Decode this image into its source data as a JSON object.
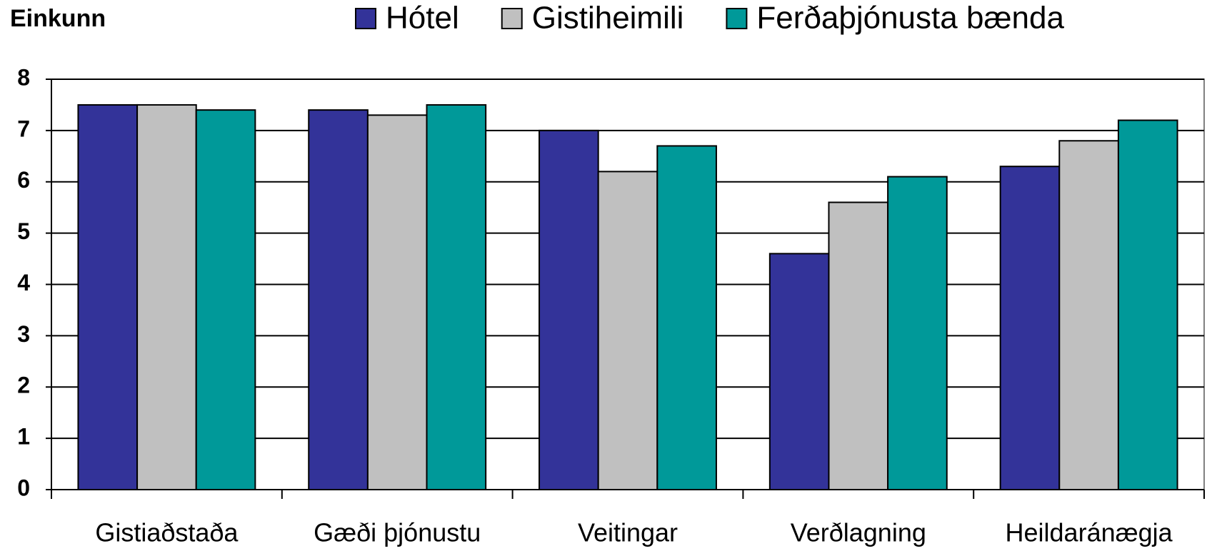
{
  "chart_data": {
    "type": "bar",
    "ylabel": "Einkunn",
    "categories": [
      "Gistiaðstaða",
      "Gæði þjónustu",
      "Veitingar",
      "Verðlagning",
      "Heildaránægja"
    ],
    "series": [
      {
        "name": "Hótel",
        "color": "#333399",
        "values": [
          7.5,
          7.4,
          7.0,
          4.6,
          6.3
        ]
      },
      {
        "name": "Gistiheimili",
        "color": "#c0c0c0",
        "values": [
          7.5,
          7.3,
          6.2,
          5.6,
          6.8
        ]
      },
      {
        "name": "Ferðaþjónusta bænda",
        "color": "#009999",
        "values": [
          7.4,
          7.5,
          6.7,
          6.1,
          7.2
        ]
      }
    ],
    "ylim": [
      0,
      8
    ],
    "yticks": [
      0,
      1,
      2,
      3,
      4,
      5,
      6,
      7,
      8
    ],
    "grid": true,
    "legend": "top"
  }
}
